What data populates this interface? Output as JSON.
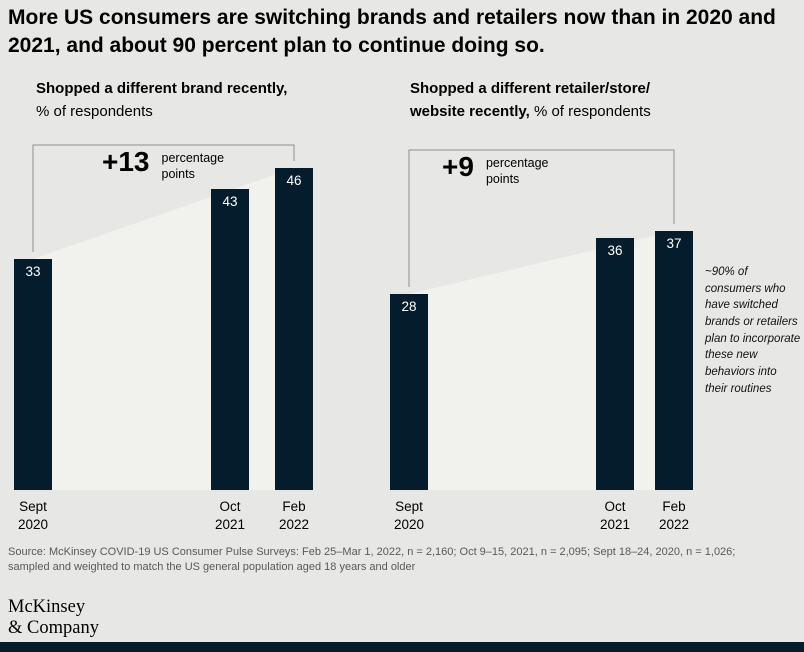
{
  "header": {
    "title": "More US consumers are switching brands and retailers now than in 2020 and 2021, and about 90 percent plan to continue doing so."
  },
  "chart_data": [
    {
      "type": "bar",
      "title_bold_line1": "Shopped a different brand recently,",
      "title_bold_line2": "",
      "title_regular": "% of respondents",
      "categories": [
        [
          "Sept",
          "2020"
        ],
        [
          "Oct",
          "2021"
        ],
        [
          "Feb",
          "2022"
        ]
      ],
      "values": [
        33,
        43,
        46
      ],
      "delta_label": "+13",
      "delta_unit": "percentage points",
      "ylabel": "% of respondents",
      "ylim": [
        0,
        50
      ],
      "grid": false,
      "legend": "none"
    },
    {
      "type": "bar",
      "title_bold_line1": "Shopped a different retailer/store/",
      "title_bold_line2": "website recently,",
      "title_regular": " % of respondents",
      "categories": [
        [
          "Sept",
          "2020"
        ],
        [
          "Oct",
          "2021"
        ],
        [
          "Feb",
          "2022"
        ]
      ],
      "values": [
        28,
        36,
        37
      ],
      "delta_label": "+9",
      "delta_unit": "percentage points",
      "ylabel": "% of respondents",
      "ylim": [
        0,
        50
      ],
      "grid": false,
      "legend": "none"
    }
  ],
  "side_note": {
    "text": "~90% of consumers who have switched brands or retailers plan to incorporate these new behaviors into their routines"
  },
  "footer": {
    "source": "Source: McKinsey COVID-19 US Consumer Pulse Surveys: Feb 25–Mar 1, 2022, n = 2,160; Oct 9–15, 2021, n = 2,095; Sept 18–24, 2020, n = 1,026; sampled and weighted to match the US general population aged 18 years and older",
    "logo_line1": "McKinsey",
    "logo_line2": "& Company"
  },
  "colors": {
    "background": "#e7e7e6",
    "bar": "#051c2c",
    "area": "#f1f1ee",
    "bracket": "#8f8f8f",
    "value_text": "#ffffff",
    "source_text": "#595959"
  }
}
